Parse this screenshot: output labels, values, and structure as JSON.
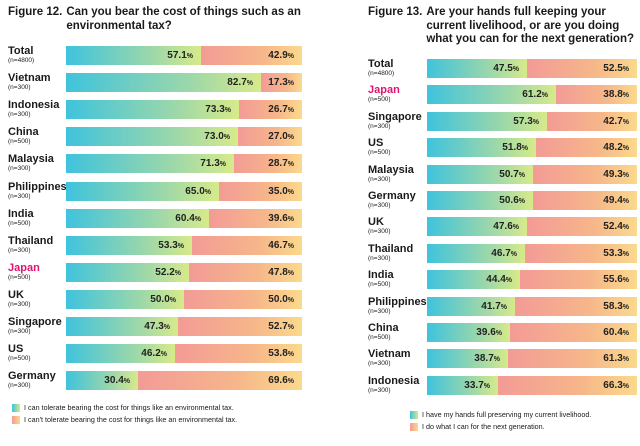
{
  "chart_data": [
    {
      "type": "bar",
      "stacked": "horizontal-100%",
      "figure_label": "Figure 12.",
      "title": "Can you bear the cost of things such as an environmental tax?",
      "highlight_category": "Japan",
      "categories": [
        {
          "name": "Total",
          "n": "(n=4800)"
        },
        {
          "name": "Vietnam",
          "n": "(n=300)"
        },
        {
          "name": "Indonesia",
          "n": "(n=300)"
        },
        {
          "name": "China",
          "n": "(n=500)"
        },
        {
          "name": "Malaysia",
          "n": "(n=300)"
        },
        {
          "name": "Philippines",
          "n": "(n=300)"
        },
        {
          "name": "India",
          "n": "(n=500)"
        },
        {
          "name": "Thailand",
          "n": "(n=300)"
        },
        {
          "name": "Japan",
          "n": "(n=500)"
        },
        {
          "name": "UK",
          "n": "(n=300)"
        },
        {
          "name": "Singapore",
          "n": "(n=300)"
        },
        {
          "name": "US",
          "n": "(n=500)"
        },
        {
          "name": "Germany",
          "n": "(n=300)"
        }
      ],
      "series": [
        {
          "name": "I can tolerate bearing the cost for things like an environmental tax.",
          "values": [
            57.1,
            82.7,
            73.3,
            73.0,
            71.3,
            65.0,
            60.4,
            53.3,
            52.2,
            50.0,
            47.3,
            46.2,
            30.4
          ]
        },
        {
          "name": "I can't tolerate bearing the cost for things like an environmental tax.",
          "values": [
            42.9,
            17.3,
            26.7,
            27.0,
            28.7,
            35.0,
            39.6,
            46.7,
            47.8,
            50.0,
            52.7,
            53.8,
            69.6
          ]
        }
      ],
      "colors": {
        "series_a": "#3fc3dd",
        "series_b": "#f39b96",
        "highlight": "#e0156b"
      }
    },
    {
      "type": "bar",
      "stacked": "horizontal-100%",
      "figure_label": "Figure 13.",
      "title": "Are your hands full keeping your current livelihood, or are you doing what you can for the next generation?",
      "highlight_category": "Japan",
      "categories": [
        {
          "name": "Total",
          "n": "(n=4800)"
        },
        {
          "name": "Japan",
          "n": "(n=500)"
        },
        {
          "name": "Singapore",
          "n": "(n=300)"
        },
        {
          "name": "US",
          "n": "(n=500)"
        },
        {
          "name": "Malaysia",
          "n": "(n=300)"
        },
        {
          "name": "Germany",
          "n": "(n=300)"
        },
        {
          "name": "UK",
          "n": "(n=300)"
        },
        {
          "name": "Thailand",
          "n": "(n=300)"
        },
        {
          "name": "India",
          "n": "(n=500)"
        },
        {
          "name": "Philippines",
          "n": "(n=300)"
        },
        {
          "name": "China",
          "n": "(n=500)"
        },
        {
          "name": "Vietnam",
          "n": "(n=300)"
        },
        {
          "name": "Indonesia",
          "n": "(n=300)"
        }
      ],
      "series": [
        {
          "name": "I have my hands full preserving my current livelihood.",
          "values": [
            47.5,
            61.2,
            57.3,
            51.8,
            50.7,
            50.6,
            47.6,
            46.7,
            44.4,
            41.7,
            39.6,
            38.7,
            33.7
          ]
        },
        {
          "name": "I do what I can for the next generation.",
          "values": [
            52.5,
            38.8,
            42.7,
            48.2,
            49.3,
            49.4,
            52.4,
            53.3,
            55.6,
            58.3,
            60.4,
            61.3,
            66.3
          ]
        }
      ],
      "colors": {
        "series_a": "#3fc3dd",
        "series_b": "#f39b96",
        "highlight": "#e0156b"
      }
    }
  ]
}
